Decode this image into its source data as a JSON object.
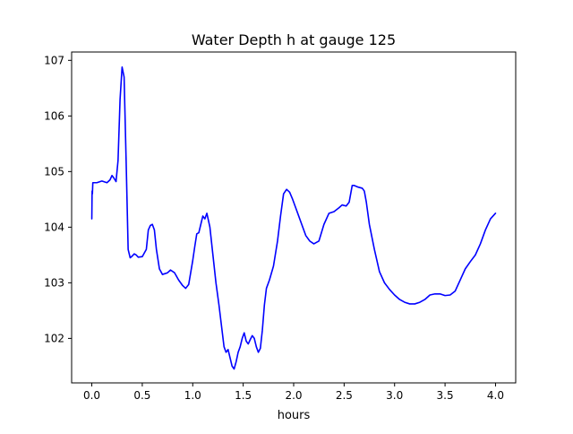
{
  "chart_data": {
    "type": "line",
    "title": "Water Depth h at gauge 125",
    "xlabel": "hours",
    "ylabel": "",
    "xlim": [
      -0.2,
      4.2
    ],
    "ylim": [
      101.2,
      107.15
    ],
    "xticks": [
      0.0,
      0.5,
      1.0,
      1.5,
      2.0,
      2.5,
      3.0,
      3.5,
      4.0
    ],
    "xtick_labels": [
      "0.0",
      "0.5",
      "1.0",
      "1.5",
      "2.0",
      "2.5",
      "3.0",
      "3.5",
      "4.0"
    ],
    "yticks": [
      102,
      103,
      104,
      105,
      106,
      107
    ],
    "ytick_labels": [
      "102",
      "103",
      "104",
      "105",
      "106",
      "107"
    ],
    "grid": false,
    "line_color": "#0000ff",
    "series": [
      {
        "x": [
          0.0,
          0.003,
          0.006,
          0.01,
          0.05,
          0.1,
          0.15,
          0.18,
          0.2,
          0.22,
          0.24,
          0.26,
          0.28,
          0.3,
          0.32,
          0.34,
          0.36,
          0.38,
          0.4,
          0.42,
          0.44,
          0.46,
          0.5,
          0.54,
          0.56,
          0.58,
          0.6,
          0.62,
          0.64,
          0.67,
          0.7,
          0.75,
          0.78,
          0.82,
          0.86,
          0.9,
          0.93,
          0.96,
          1.0,
          1.02,
          1.04,
          1.06,
          1.08,
          1.1,
          1.12,
          1.14,
          1.17,
          1.2,
          1.23,
          1.26,
          1.29,
          1.31,
          1.33,
          1.35,
          1.37,
          1.39,
          1.41,
          1.43,
          1.45,
          1.47,
          1.49,
          1.51,
          1.53,
          1.55,
          1.57,
          1.59,
          1.61,
          1.63,
          1.65,
          1.67,
          1.69,
          1.71,
          1.73,
          1.76,
          1.8,
          1.84,
          1.87,
          1.9,
          1.93,
          1.96,
          1.99,
          2.02,
          2.05,
          2.08,
          2.12,
          2.16,
          2.2,
          2.25,
          2.3,
          2.35,
          2.4,
          2.45,
          2.48,
          2.52,
          2.55,
          2.58,
          2.6,
          2.64,
          2.68,
          2.7,
          2.72,
          2.75,
          2.8,
          2.85,
          2.9,
          2.95,
          3.0,
          3.05,
          3.1,
          3.15,
          3.2,
          3.25,
          3.3,
          3.35,
          3.4,
          3.45,
          3.5,
          3.55,
          3.6,
          3.65,
          3.7,
          3.75,
          3.8,
          3.85,
          3.9,
          3.95,
          4.0
        ],
        "y": [
          104.15,
          104.65,
          104.6,
          104.8,
          104.8,
          104.83,
          104.8,
          104.85,
          104.93,
          104.88,
          104.82,
          105.2,
          106.3,
          106.88,
          106.7,
          105.2,
          103.6,
          103.45,
          103.48,
          103.52,
          103.5,
          103.46,
          103.47,
          103.6,
          103.95,
          104.03,
          104.05,
          103.95,
          103.6,
          103.25,
          103.15,
          103.18,
          103.23,
          103.18,
          103.05,
          102.95,
          102.9,
          102.97,
          103.4,
          103.65,
          103.88,
          103.9,
          104.05,
          104.2,
          104.15,
          104.25,
          104.0,
          103.5,
          103.0,
          102.6,
          102.15,
          101.85,
          101.75,
          101.8,
          101.65,
          101.5,
          101.45,
          101.58,
          101.75,
          101.85,
          102.0,
          102.1,
          101.95,
          101.9,
          101.98,
          102.05,
          102.0,
          101.85,
          101.75,
          101.82,
          102.15,
          102.6,
          102.9,
          103.05,
          103.3,
          103.75,
          104.2,
          104.6,
          104.68,
          104.63,
          104.5,
          104.35,
          104.2,
          104.05,
          103.85,
          103.75,
          103.7,
          103.75,
          104.05,
          104.25,
          104.28,
          104.35,
          104.4,
          104.38,
          104.45,
          104.75,
          104.75,
          104.72,
          104.7,
          104.65,
          104.45,
          104.05,
          103.6,
          103.2,
          103.0,
          102.88,
          102.78,
          102.7,
          102.65,
          102.62,
          102.62,
          102.65,
          102.7,
          102.78,
          102.8,
          102.8,
          102.77,
          102.78,
          102.85,
          103.05,
          103.25,
          103.38,
          103.5,
          103.7,
          103.95,
          104.15,
          104.25
        ]
      }
    ]
  }
}
